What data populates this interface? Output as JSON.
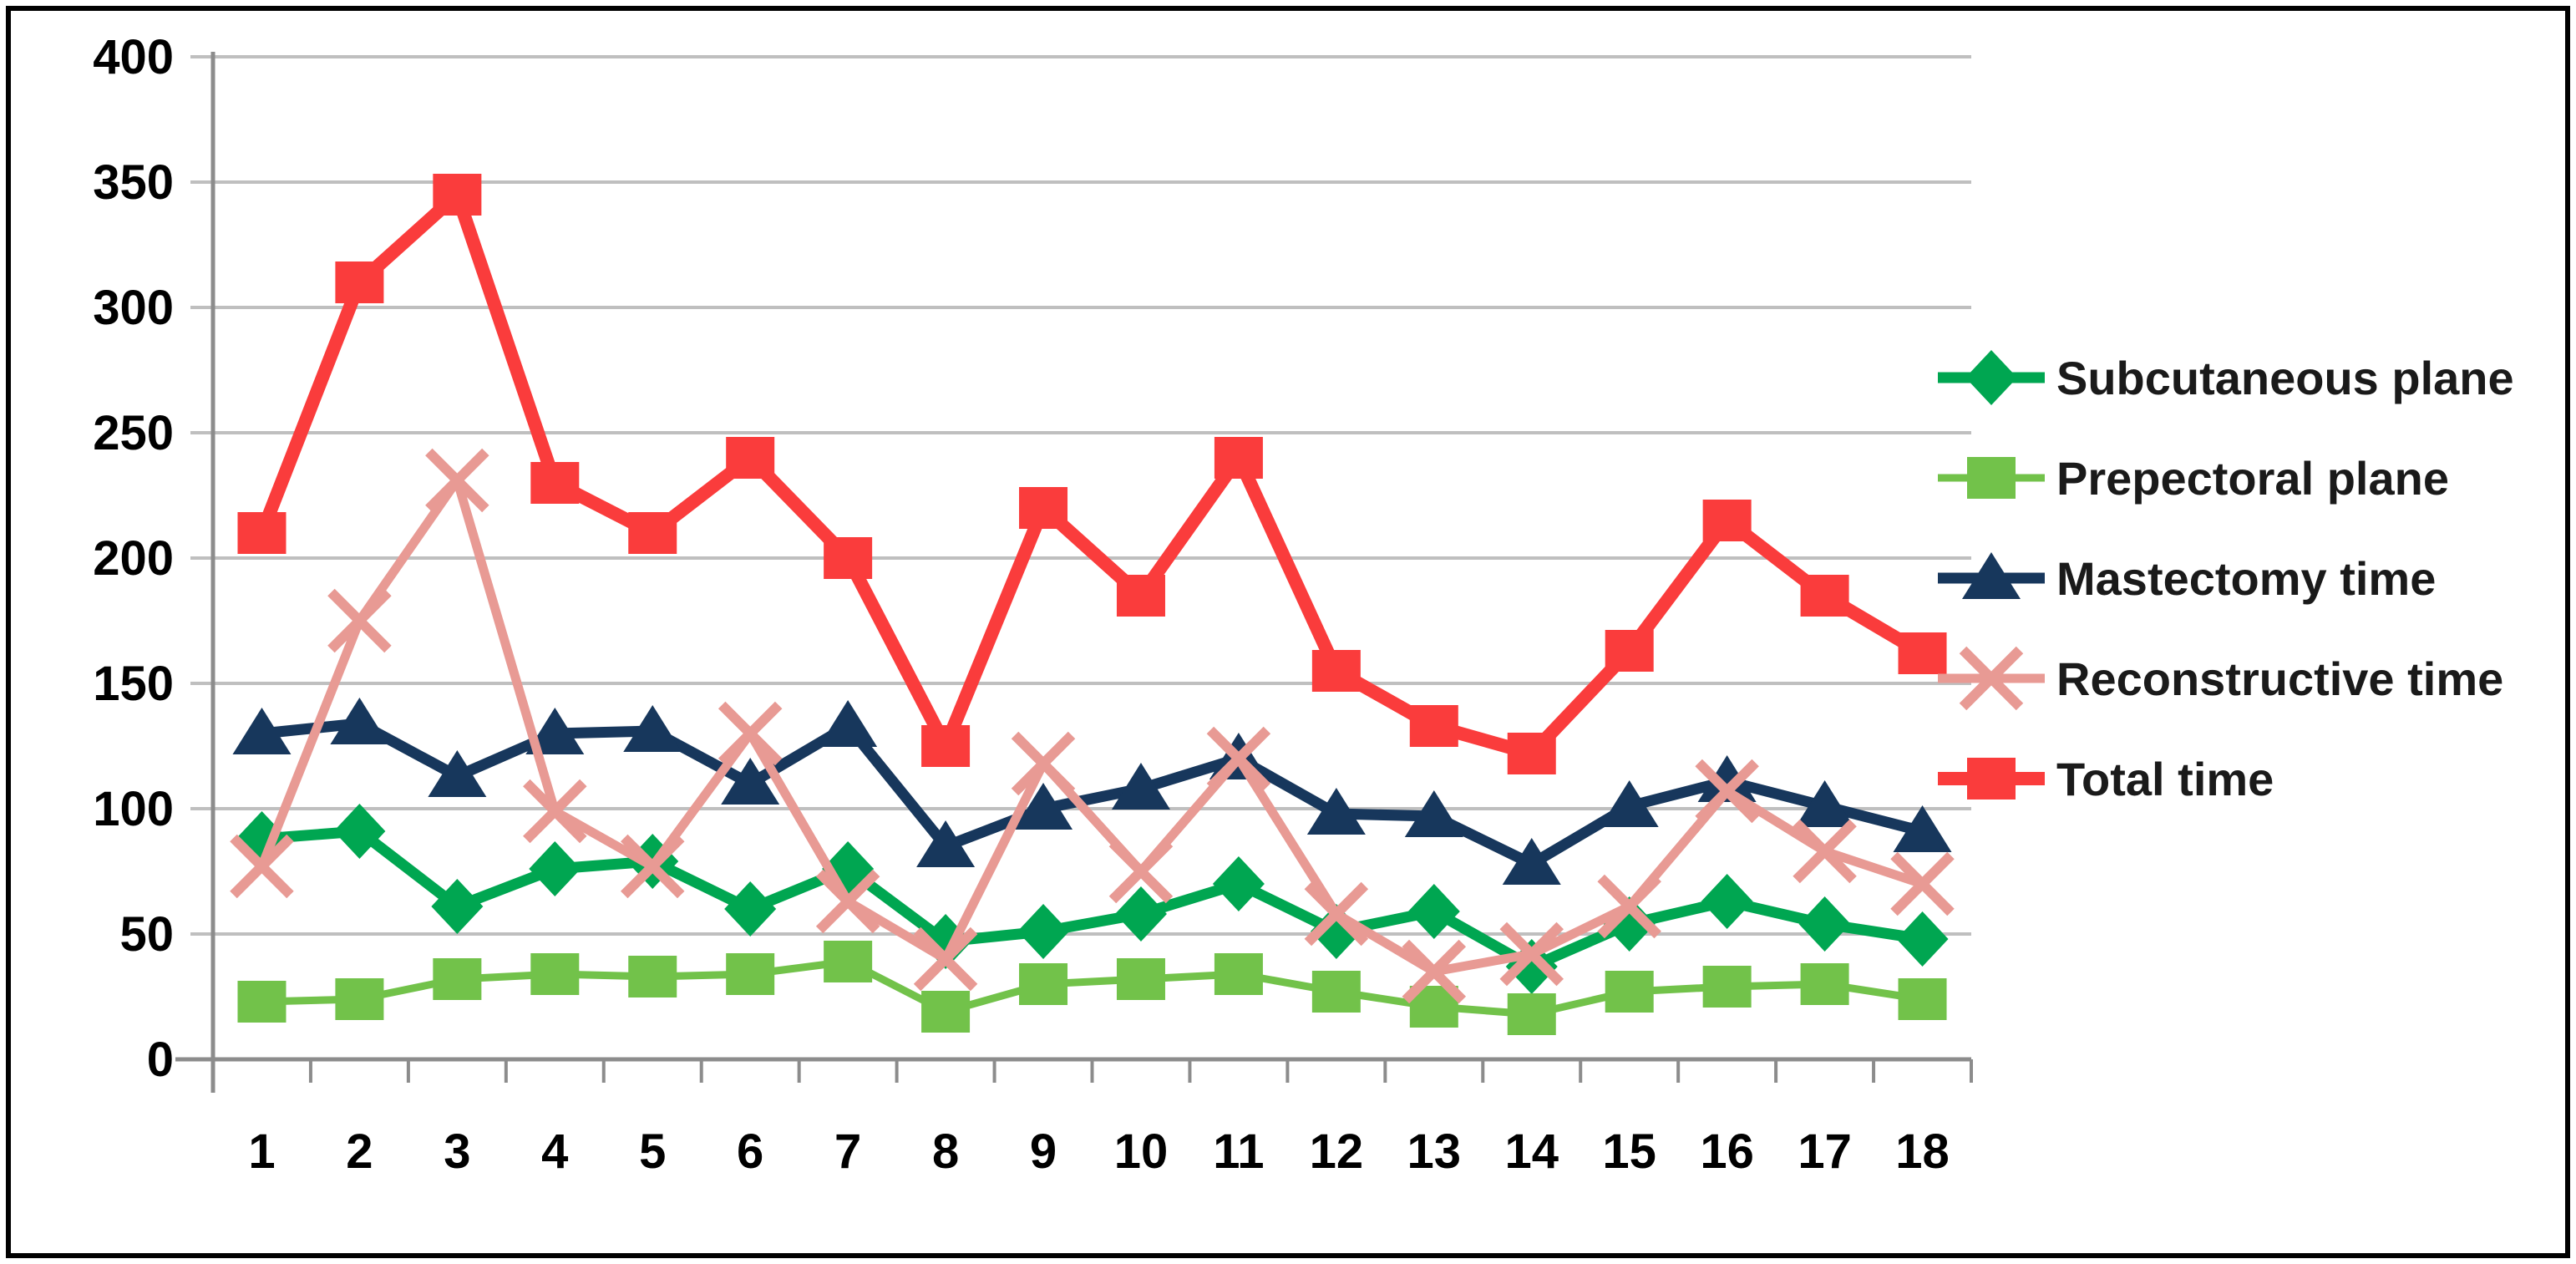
{
  "figure": {
    "background_color": "#ffffff",
    "border_color": "#000000",
    "grid_color": "#bfbfbf",
    "axis_color": "#8c8c8c",
    "tick_label_color": "#000000",
    "legend_text_color": "#1a1a1a"
  },
  "chart_data": {
    "type": "line",
    "title": "",
    "xlabel": "",
    "ylabel": "",
    "ylim": [
      0,
      400
    ],
    "y_ticks": [
      0,
      50,
      100,
      150,
      200,
      250,
      300,
      350,
      400
    ],
    "grid": true,
    "legend_position": "right",
    "categories": [
      "1",
      "2",
      "3",
      "4",
      "5",
      "6",
      "7",
      "8",
      "9",
      "10",
      "11",
      "12",
      "13",
      "14",
      "15",
      "16",
      "17",
      "18"
    ],
    "series": [
      {
        "name": "Subcutaneous plane",
        "marker": "diamond",
        "color": "#00a651",
        "values": [
          88,
          91,
          61,
          76,
          79,
          60,
          76,
          47,
          51,
          58,
          70,
          51,
          59,
          37,
          54,
          63,
          54,
          48
        ]
      },
      {
        "name": "Prepectoral plane",
        "marker": "square",
        "color": "#72c24a",
        "values": [
          23,
          24,
          32,
          34,
          33,
          34,
          39,
          19,
          30,
          32,
          34,
          27,
          21,
          18,
          27,
          29,
          30,
          24
        ]
      },
      {
        "name": "Mastectomy time",
        "marker": "triangle",
        "color": "#17375c",
        "values": [
          130,
          134,
          113,
          130,
          131,
          110,
          133,
          85,
          100,
          108,
          120,
          98,
          97,
          78,
          101,
          111,
          101,
          91
        ]
      },
      {
        "name": "Reconstructive time",
        "marker": "x",
        "color": "#e89a94",
        "values": [
          77,
          175,
          231,
          99,
          77,
          130,
          63,
          40,
          118,
          75,
          120,
          58,
          35,
          42,
          61,
          107,
          83,
          70
        ]
      },
      {
        "name": "Total time",
        "marker": "square",
        "color": "#fa3c3c",
        "values": [
          210,
          310,
          345,
          230,
          210,
          240,
          200,
          125,
          220,
          185,
          240,
          155,
          133,
          122,
          163,
          215,
          185,
          162
        ]
      }
    ]
  }
}
